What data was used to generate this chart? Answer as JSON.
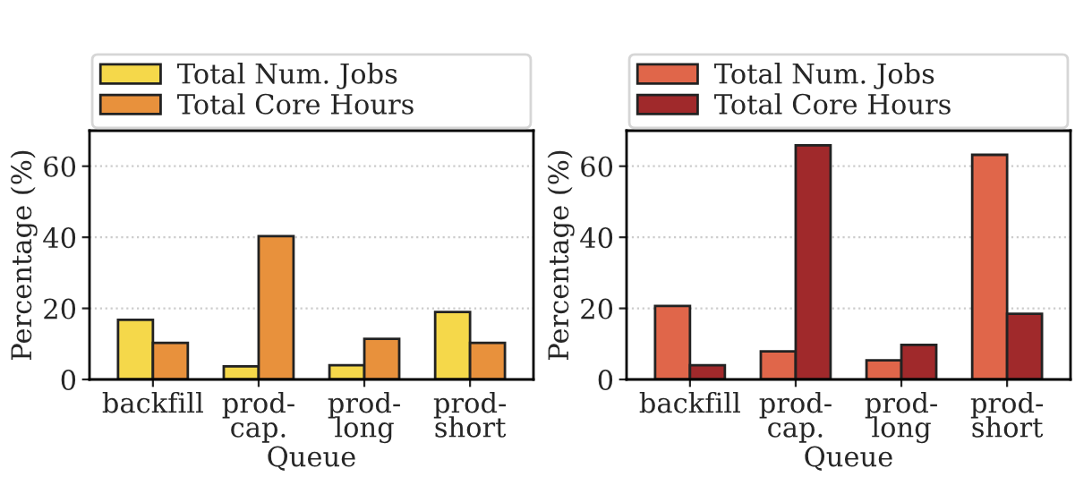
{
  "chart_data": [
    {
      "type": "bar",
      "categories": [
        "backfill",
        "prod-\ncap.",
        "prod-\nlong",
        "prod-\nshort"
      ],
      "xlabel": "Queue",
      "ylabel": "Percentage (%)",
      "ylim": [
        0,
        70
      ],
      "yticks": [
        0,
        20,
        40,
        60
      ],
      "grid": "y",
      "legend": "top",
      "series": [
        {
          "name": "Total Num. Jobs",
          "color": "#f5d84a",
          "values": [
            16.8,
            3.7,
            4.0,
            19.0
          ]
        },
        {
          "name": "Total Core Hours",
          "color": "#e8913c",
          "values": [
            10.3,
            40.3,
            11.4,
            10.3
          ]
        }
      ]
    },
    {
      "type": "bar",
      "categories": [
        "backfill",
        "prod-\ncap.",
        "prod-\nlong",
        "prod-\nshort"
      ],
      "xlabel": "Queue",
      "ylabel": "Percentage (%)",
      "ylim": [
        0,
        70
      ],
      "yticks": [
        0,
        20,
        40,
        60
      ],
      "grid": "y",
      "legend": "top",
      "series": [
        {
          "name": "Total Num. Jobs",
          "color": "#e0664a",
          "values": [
            20.7,
            7.9,
            5.4,
            63.2
          ]
        },
        {
          "name": "Total Core Hours",
          "color": "#a0292b",
          "values": [
            4.0,
            65.9,
            9.7,
            18.5
          ]
        }
      ]
    }
  ]
}
